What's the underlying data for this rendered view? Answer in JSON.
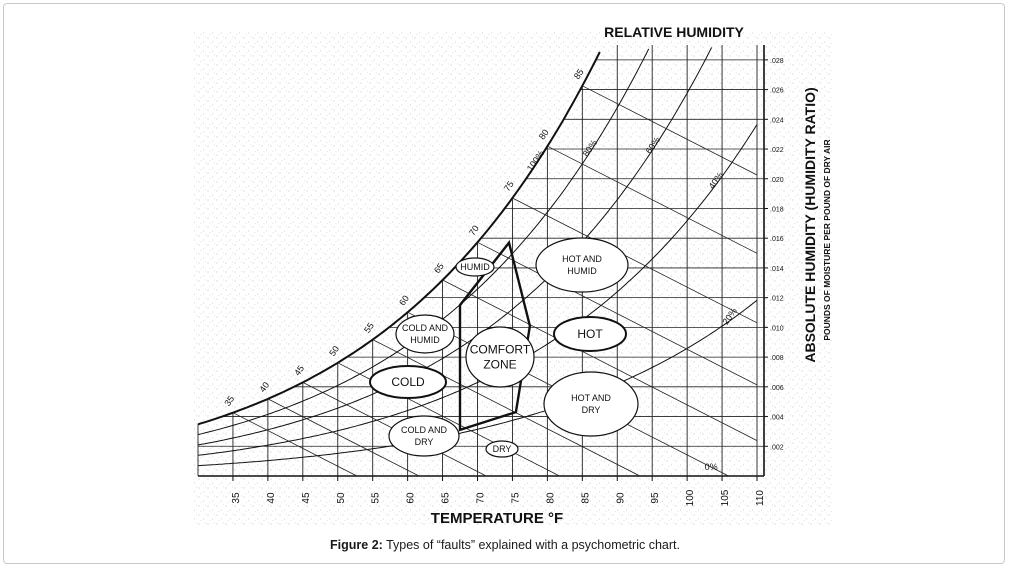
{
  "caption": {
    "label": "Figure 2:",
    "text": "Types of “faults” explained with a psychometric chart."
  },
  "chart_data": {
    "type": "psychrometric",
    "title": "RELATIVE HUMIDITY",
    "xlabel": "TEMPERATURE °F",
    "ylabel": "ABSOLUTE HUMIDITY (HUMIDITY RATIO)",
    "ylabel2": "POUNDS OF MOISTURE PER POUND OF DRY AIR",
    "x_ticks": [
      35,
      40,
      45,
      50,
      55,
      60,
      65,
      70,
      75,
      80,
      85,
      90,
      95,
      100,
      105,
      110
    ],
    "xlim": [
      30,
      111
    ],
    "y_ticks": [
      ".028",
      ".026",
      ".024",
      ".022",
      ".020",
      ".018",
      ".016",
      ".014",
      ".012",
      ".010",
      ".008",
      ".006",
      ".004",
      ".002"
    ],
    "ylim": [
      0,
      0.029
    ],
    "rh_curve_labels": [
      "100%",
      "80%",
      "60%",
      "40%",
      "20%",
      "0%"
    ],
    "wet_bulb_labels": [
      "35",
      "40",
      "45",
      "50",
      "55",
      "60",
      "65",
      "70",
      "75",
      "80",
      "85"
    ],
    "comfort_zone_polygon": [
      [
        67.5,
        0.0031
      ],
      [
        75.5,
        0.0043
      ],
      [
        77.5,
        0.0101
      ],
      [
        74.5,
        0.0157
      ],
      [
        67.5,
        0.0115
      ]
    ],
    "regions": [
      {
        "id": "humid",
        "lines": [
          "HUMID"
        ]
      },
      {
        "id": "hot-and-humid",
        "lines": [
          "HOT AND",
          "HUMID"
        ]
      },
      {
        "id": "cold-and-humid",
        "lines": [
          "COLD AND",
          "HUMID"
        ]
      },
      {
        "id": "comfort-zone",
        "lines": [
          "COMFORT",
          "ZONE"
        ]
      },
      {
        "id": "hot",
        "lines": [
          "HOT"
        ]
      },
      {
        "id": "cold",
        "lines": [
          "COLD"
        ]
      },
      {
        "id": "hot-and-dry",
        "lines": [
          "HOT AND",
          "DRY"
        ]
      },
      {
        "id": "cold-and-dry",
        "lines": [
          "COLD AND",
          "DRY"
        ]
      },
      {
        "id": "dry",
        "lines": [
          "DRY"
        ]
      }
    ]
  }
}
